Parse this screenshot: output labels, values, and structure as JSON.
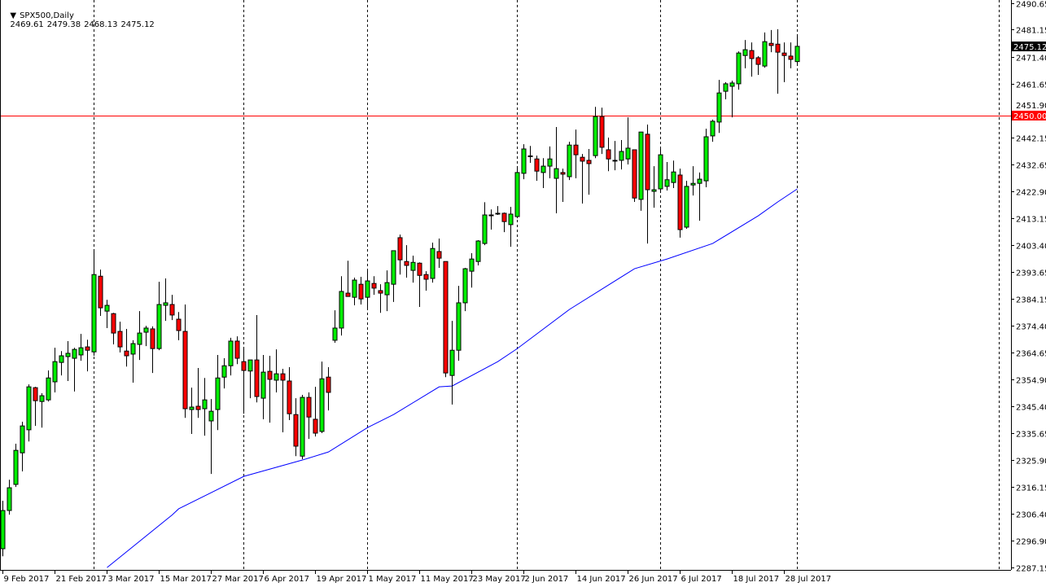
{
  "header": {
    "symbol_label": "SPX500,Daily",
    "open": "2469.61",
    "high": "2479.38",
    "low": "2468.13",
    "close": "2475.12",
    "menu_icon": "triangle-down-icon"
  },
  "colors": {
    "bull": "#00ee00",
    "bear": "#ff0000",
    "outline": "#000000",
    "ma": "#0000ff",
    "hline": "#ff0000",
    "current_price_bg": "#000000",
    "hline_label_bg": "#ff0000"
  },
  "chart_data": {
    "type": "candlestick",
    "title": "SPX500,Daily",
    "ylim": [
      2287.15,
      2490.65
    ],
    "grid": false,
    "y_ticks": [
      "2490.65",
      "2481.15",
      "2471.40",
      "2461.65",
      "2451.90",
      "2442.15",
      "2432.65",
      "2422.90",
      "2413.15",
      "2403.40",
      "2393.65",
      "2384.15",
      "2374.40",
      "2364.65",
      "2354.90",
      "2345.40",
      "2335.65",
      "2325.90",
      "2316.15",
      "2306.40",
      "2296.90",
      "2287.15"
    ],
    "x_ticks": [
      "9 Feb 2017",
      "21 Feb 2017",
      "3 Mar 2017",
      "15 Mar 2017",
      "27 Mar 2017",
      "6 Apr 2017",
      "19 Apr 2017",
      "1 May 2017",
      "11 May 2017",
      "23 May 2017",
      "2 Jun 2017",
      "14 Jun 2017",
      "26 Jun 2017",
      "6 Jul 2017",
      "18 Jul 2017",
      "28 Jul 2017"
    ],
    "x_tick_every_bars": 8,
    "period_separators_bar": [
      14,
      37,
      56,
      79,
      101,
      122,
      153
    ],
    "current_price": "2475.12",
    "horizontal_line": {
      "value": 2450.0,
      "label": "2450.00"
    },
    "ohlc": [
      [
        2293.9,
        2311.2,
        2291.2,
        2307.7
      ],
      [
        2307.7,
        2318.8,
        2306.2,
        2315.9
      ],
      [
        2317.1,
        2331.8,
        2316.2,
        2329.4
      ],
      [
        2328.5,
        2339.7,
        2321.8,
        2338.2
      ],
      [
        2336.8,
        2353.2,
        2332.6,
        2352.3
      ],
      [
        2352.0,
        2352.3,
        2338.2,
        2347.3
      ],
      [
        2347.0,
        2350.0,
        2337.6,
        2349.1
      ],
      [
        2347.6,
        2358.2,
        2347.0,
        2355.5
      ],
      [
        2354.1,
        2366.4,
        2350.3,
        2361.4
      ],
      [
        2361.1,
        2365.2,
        2356.4,
        2363.5
      ],
      [
        2363.2,
        2368.8,
        2354.4,
        2364.4
      ],
      [
        2362.6,
        2366.4,
        2350.6,
        2365.8
      ],
      [
        2363.8,
        2371.4,
        2361.7,
        2366.4
      ],
      [
        2366.7,
        2369.3,
        2357.9,
        2365.5
      ],
      [
        2364.9,
        2401.7,
        2363.5,
        2392.8
      ],
      [
        2392.2,
        2394.6,
        2377.9,
        2380.8
      ],
      [
        2379.6,
        2383.7,
        2373.5,
        2381.7
      ],
      [
        2378.7,
        2379.0,
        2367.6,
        2371.7
      ],
      [
        2372.3,
        2375.8,
        2364.7,
        2366.7
      ],
      [
        2365.2,
        2373.2,
        2359.6,
        2363.5
      ],
      [
        2364.1,
        2369.1,
        2353.8,
        2367.9
      ],
      [
        2367.6,
        2379.6,
        2362.0,
        2371.7
      ],
      [
        2372.0,
        2374.3,
        2367.0,
        2373.5
      ],
      [
        2373.2,
        2374.1,
        2357.3,
        2366.1
      ],
      [
        2366.1,
        2390.2,
        2365.5,
        2382.0
      ],
      [
        2381.7,
        2391.4,
        2376.1,
        2382.6
      ],
      [
        2382.0,
        2385.5,
        2376.4,
        2378.2
      ],
      [
        2376.7,
        2379.3,
        2369.1,
        2372.6
      ],
      [
        2372.3,
        2382.0,
        2341.1,
        2344.4
      ],
      [
        2344.1,
        2352.0,
        2335.3,
        2345.0
      ],
      [
        2345.3,
        2359.1,
        2341.1,
        2344.1
      ],
      [
        2344.4,
        2355.5,
        2334.7,
        2347.6
      ],
      [
        2340.0,
        2347.9,
        2320.9,
        2343.5
      ],
      [
        2344.1,
        2363.8,
        2336.7,
        2355.5
      ],
      [
        2355.8,
        2362.6,
        2351.7,
        2359.9
      ],
      [
        2359.9,
        2370.0,
        2356.4,
        2368.8
      ],
      [
        2368.8,
        2370.5,
        2360.5,
        2362.6
      ],
      [
        2361.4,
        2366.7,
        2342.6,
        2358.2
      ],
      [
        2358.0,
        2362.0,
        2348.2,
        2362.0
      ],
      [
        2362.0,
        2378.2,
        2346.7,
        2348.8
      ],
      [
        2348.2,
        2363.8,
        2340.6,
        2357.6
      ],
      [
        2357.9,
        2363.5,
        2339.4,
        2355.0
      ],
      [
        2354.7,
        2365.8,
        2350.3,
        2357.0
      ],
      [
        2357.0,
        2358.8,
        2335.9,
        2354.7
      ],
      [
        2354.4,
        2359.4,
        2340.3,
        2342.6
      ],
      [
        2342.3,
        2348.2,
        2327.3,
        2330.9
      ],
      [
        2327.3,
        2349.4,
        2326.2,
        2348.5
      ],
      [
        2348.5,
        2350.3,
        2333.5,
        2341.4
      ],
      [
        2340.6,
        2352.3,
        2334.4,
        2335.6
      ],
      [
        2336.2,
        2361.4,
        2335.6,
        2355.2
      ],
      [
        2355.8,
        2359.4,
        2343.8,
        2350.3
      ],
      [
        2369.1,
        2379.9,
        2368.2,
        2373.5
      ],
      [
        2373.5,
        2392.2,
        2370.8,
        2386.7
      ],
      [
        2386.1,
        2397.8,
        2384.9,
        2384.9
      ],
      [
        2384.6,
        2391.7,
        2381.7,
        2390.8
      ],
      [
        2389.3,
        2392.0,
        2382.0,
        2384.0
      ],
      [
        2384.6,
        2394.3,
        2380.8,
        2390.5
      ],
      [
        2389.6,
        2392.2,
        2385.5,
        2387.9
      ],
      [
        2387.0,
        2389.3,
        2379.0,
        2386.1
      ],
      [
        2385.5,
        2394.3,
        2379.6,
        2389.9
      ],
      [
        2389.3,
        2401.4,
        2382.9,
        2401.4
      ],
      [
        2406.1,
        2407.2,
        2392.8,
        2398.1
      ],
      [
        2397.5,
        2403.4,
        2391.7,
        2396.1
      ],
      [
        2394.3,
        2399.6,
        2389.9,
        2397.2
      ],
      [
        2396.9,
        2397.2,
        2381.1,
        2392.5
      ],
      [
        2392.8,
        2394.0,
        2387.0,
        2391.1
      ],
      [
        2391.4,
        2404.3,
        2389.9,
        2402.2
      ],
      [
        2401.1,
        2405.8,
        2395.2,
        2398.7
      ],
      [
        2397.5,
        2397.5,
        2355.8,
        2357.3
      ],
      [
        2356.4,
        2376.1,
        2345.9,
        2365.5
      ],
      [
        2365.5,
        2388.7,
        2361.7,
        2382.6
      ],
      [
        2382.6,
        2395.2,
        2379.6,
        2394.9
      ],
      [
        2394.0,
        2400.5,
        2388.1,
        2398.4
      ],
      [
        2397.5,
        2405.2,
        2396.1,
        2404.9
      ],
      [
        2404.0,
        2418.9,
        2403.4,
        2414.3
      ],
      [
        2414.3,
        2416.3,
        2409.0,
        2414.0
      ],
      [
        2414.6,
        2417.5,
        2414.3,
        2414.9
      ],
      [
        2414.9,
        2415.2,
        2408.1,
        2411.9
      ],
      [
        2410.8,
        2417.2,
        2402.8,
        2414.6
      ],
      [
        2413.7,
        2431.3,
        2413.1,
        2429.6
      ],
      [
        2429.3,
        2439.8,
        2427.2,
        2438.1
      ],
      [
        2435.4,
        2439.2,
        2433.1,
        2435.6
      ],
      [
        2434.5,
        2435.7,
        2426.6,
        2430.1
      ],
      [
        2429.6,
        2434.8,
        2424.0,
        2431.9
      ],
      [
        2431.9,
        2439.0,
        2427.5,
        2434.5
      ],
      [
        2427.5,
        2446.0,
        2414.9,
        2431.0
      ],
      [
        2429.6,
        2431.0,
        2419.0,
        2429.0
      ],
      [
        2428.1,
        2440.7,
        2426.9,
        2439.5
      ],
      [
        2439.5,
        2445.1,
        2427.5,
        2436.0
      ],
      [
        2435.1,
        2436.3,
        2418.4,
        2433.7
      ],
      [
        2434.0,
        2438.1,
        2421.6,
        2432.8
      ],
      [
        2435.7,
        2453.3,
        2434.8,
        2449.8
      ],
      [
        2449.8,
        2453.0,
        2436.3,
        2438.7
      ],
      [
        2437.8,
        2442.2,
        2430.1,
        2434.5
      ],
      [
        2434.0,
        2441.0,
        2430.4,
        2434.0
      ],
      [
        2434.0,
        2441.3,
        2430.7,
        2437.2
      ],
      [
        2434.5,
        2449.5,
        2432.5,
        2438.4
      ],
      [
        2437.8,
        2437.8,
        2419.0,
        2420.4
      ],
      [
        2419.9,
        2444.2,
        2415.8,
        2444.2
      ],
      [
        2443.4,
        2446.9,
        2404.0,
        2423.4
      ],
      [
        2422.8,
        2431.9,
        2416.9,
        2423.4
      ],
      [
        2423.7,
        2438.4,
        2422.8,
        2436.0
      ],
      [
        2424.6,
        2433.4,
        2423.1,
        2427.0
      ],
      [
        2426.0,
        2433.9,
        2424.0,
        2429.8
      ],
      [
        2428.7,
        2431.0,
        2406.1,
        2409.0
      ],
      [
        2409.9,
        2426.6,
        2409.3,
        2424.6
      ],
      [
        2425.1,
        2431.9,
        2421.3,
        2425.7
      ],
      [
        2425.7,
        2429.6,
        2412.2,
        2427.2
      ],
      [
        2426.6,
        2445.4,
        2424.3,
        2442.5
      ],
      [
        2442.8,
        2448.7,
        2440.7,
        2448.1
      ],
      [
        2447.8,
        2463.0,
        2443.9,
        2458.3
      ],
      [
        2458.9,
        2462.2,
        2456.0,
        2461.6
      ],
      [
        2460.7,
        2462.7,
        2449.5,
        2461.9
      ],
      [
        2461.6,
        2473.3,
        2459.5,
        2472.7
      ],
      [
        2471.8,
        2477.4,
        2467.2,
        2473.9
      ],
      [
        2473.6,
        2476.5,
        2464.2,
        2470.7
      ],
      [
        2471.0,
        2471.6,
        2464.8,
        2468.6
      ],
      [
        2468.0,
        2480.1,
        2467.4,
        2476.8
      ],
      [
        2476.2,
        2481.0,
        2473.0,
        2475.4
      ],
      [
        2475.9,
        2481.3,
        2458.0,
        2473.0
      ],
      [
        2472.7,
        2476.5,
        2462.2,
        2471.8
      ],
      [
        2471.6,
        2476.5,
        2467.2,
        2470.4
      ],
      [
        2469.61,
        2479.38,
        2468.13,
        2475.12
      ]
    ],
    "moving_average": [
      {
        "bar": 16,
        "value": 2287.1
      },
      {
        "bar": 26,
        "value": 2306.1
      },
      {
        "bar": 27,
        "value": 2308.3
      },
      {
        "bar": 37,
        "value": 2320.0
      },
      {
        "bar": 46,
        "value": 2325.9
      },
      {
        "bar": 50,
        "value": 2328.8
      },
      {
        "bar": 56,
        "value": 2337.6
      },
      {
        "bar": 60,
        "value": 2342.3
      },
      {
        "bar": 67,
        "value": 2352.3
      },
      {
        "bar": 69,
        "value": 2352.6
      },
      {
        "bar": 76,
        "value": 2361.4
      },
      {
        "bar": 79,
        "value": 2366.1
      },
      {
        "bar": 87,
        "value": 2380.2
      },
      {
        "bar": 97,
        "value": 2394.9
      },
      {
        "bar": 102,
        "value": 2398.4
      },
      {
        "bar": 109,
        "value": 2404.0
      },
      {
        "bar": 116,
        "value": 2414.0
      },
      {
        "bar": 119,
        "value": 2419.0
      },
      {
        "bar": 122,
        "value": 2423.7
      }
    ]
  }
}
